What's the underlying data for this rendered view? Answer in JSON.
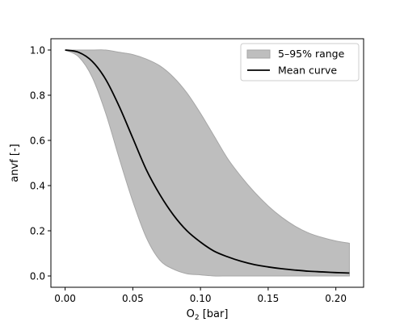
{
  "chart_data": {
    "type": "area",
    "title": "",
    "xlabel": "O",
    "xlabel_sub": "2",
    "xlabel_unit": " [bar]",
    "ylabel": "anvf [-]",
    "xlim": [
      -0.0105,
      0.2205
    ],
    "ylim": [
      -0.05,
      1.05
    ],
    "xticks": [
      0.0,
      0.05,
      0.1,
      0.15,
      0.2
    ],
    "xtick_labels": [
      "0.00",
      "0.05",
      "0.10",
      "0.15",
      "0.20"
    ],
    "yticks": [
      0.0,
      0.2,
      0.4,
      0.6,
      0.8,
      1.0
    ],
    "ytick_labels": [
      "0.0",
      "0.2",
      "0.4",
      "0.6",
      "0.8",
      "1.0"
    ],
    "grid": false,
    "legend_position": "upper right",
    "x": [
      0.0,
      0.01,
      0.02,
      0.03,
      0.04,
      0.05,
      0.06,
      0.07,
      0.08,
      0.09,
      0.1,
      0.11,
      0.12,
      0.13,
      0.14,
      0.15,
      0.16,
      0.17,
      0.18,
      0.19,
      0.2,
      0.21
    ],
    "series": [
      {
        "name": "5–95% range",
        "kind": "band",
        "lower": [
          1.0,
          0.97,
          0.88,
          0.72,
          0.52,
          0.33,
          0.17,
          0.07,
          0.03,
          0.01,
          0.005,
          0.0,
          0.0,
          0.0,
          0.0,
          0.0,
          0.0,
          0.0,
          0.0,
          0.0,
          0.0,
          0.0
        ],
        "upper": [
          1.0,
          1.0,
          1.0,
          1.0,
          0.99,
          0.98,
          0.96,
          0.93,
          0.88,
          0.81,
          0.72,
          0.62,
          0.52,
          0.44,
          0.37,
          0.31,
          0.26,
          0.22,
          0.19,
          0.17,
          0.155,
          0.145
        ],
        "color": "#bebebe",
        "edge_color": "#a6a6a6"
      },
      {
        "name": "Mean curve",
        "kind": "line",
        "values": [
          1.0,
          0.99,
          0.95,
          0.87,
          0.75,
          0.61,
          0.47,
          0.36,
          0.27,
          0.2,
          0.15,
          0.11,
          0.085,
          0.065,
          0.05,
          0.04,
          0.032,
          0.026,
          0.021,
          0.018,
          0.015,
          0.013
        ],
        "color": "#000000"
      }
    ]
  }
}
